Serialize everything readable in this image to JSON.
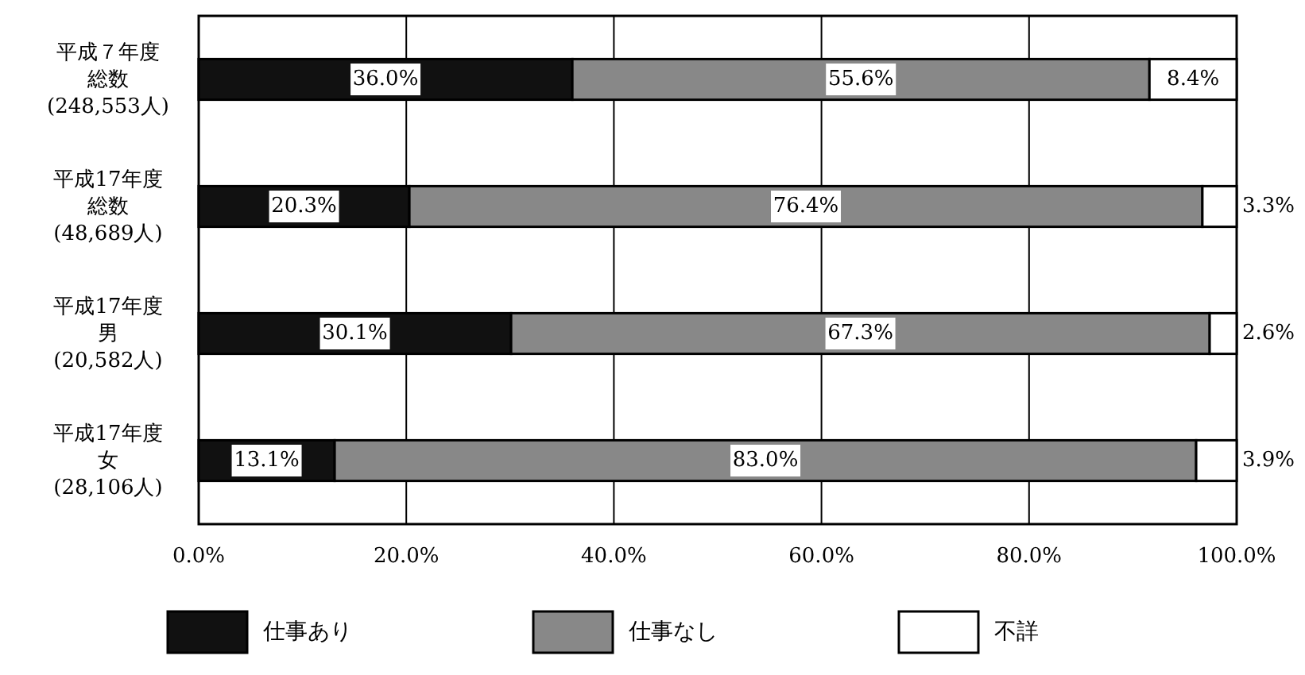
{
  "chart_data": {
    "type": "bar",
    "orientation": "horizontal",
    "stacked": true,
    "categories": [
      "平成７年度総数(248,553人)",
      "平成17年度総数(48,689人)",
      "平成17年度男(20,582人)",
      "平成17年度女(28,106人)"
    ],
    "series": [
      {
        "name": "仕事あり",
        "color": "#111111",
        "values": [
          36.0,
          20.3,
          30.1,
          13.1
        ],
        "value_labels": [
          "36.0%",
          "20.3%",
          "30.1%",
          "13.1%"
        ]
      },
      {
        "name": "仕事なし",
        "color": "#888888",
        "values": [
          55.6,
          76.4,
          67.3,
          83.0
        ],
        "value_labels": [
          "55.6%",
          "76.4%",
          "67.3%",
          "83.0%"
        ]
      },
      {
        "name": "不詳",
        "color": "#ffffff",
        "values": [
          8.4,
          3.3,
          2.6,
          3.9
        ],
        "value_labels": [
          "8.4%",
          "3.3%",
          "2.6%",
          "3.9%"
        ]
      }
    ],
    "xlim": [
      0,
      100
    ],
    "xticks": [
      {
        "value": 0,
        "label": "0.0%"
      },
      {
        "value": 20,
        "label": "20.0%"
      },
      {
        "value": 40,
        "label": "40.0%"
      },
      {
        "value": 60,
        "label": "60.0%"
      },
      {
        "value": 80,
        "label": "80.0%"
      },
      {
        "value": 100,
        "label": "100.0%"
      }
    ],
    "grid": "x",
    "legend": "bottom"
  }
}
